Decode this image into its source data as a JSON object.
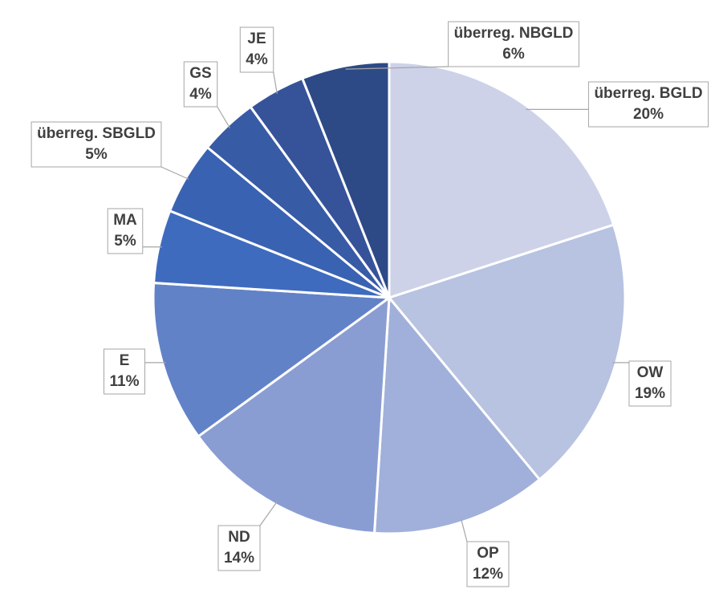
{
  "chart_data": {
    "type": "pie",
    "categories": [
      "überreg. BGLD",
      "OW",
      "OP",
      "ND",
      "E",
      "MA",
      "überreg. SBGLD",
      "GS",
      "JE",
      "überreg. NBGLD"
    ],
    "values": [
      20,
      19,
      12,
      14,
      11,
      5,
      5,
      4,
      4,
      6
    ],
    "value_labels": [
      "20%",
      "19%",
      "12%",
      "14%",
      "11%",
      "5%",
      "5%",
      "4%",
      "4%",
      "6%"
    ],
    "colors": [
      "#cdd2e8",
      "#b8c2e1",
      "#a1b0da",
      "#8a9dd3",
      "#6282c8",
      "#3f6bbf",
      "#3a62b2",
      "#385ba6",
      "#36539a",
      "#2d4a87"
    ]
  }
}
